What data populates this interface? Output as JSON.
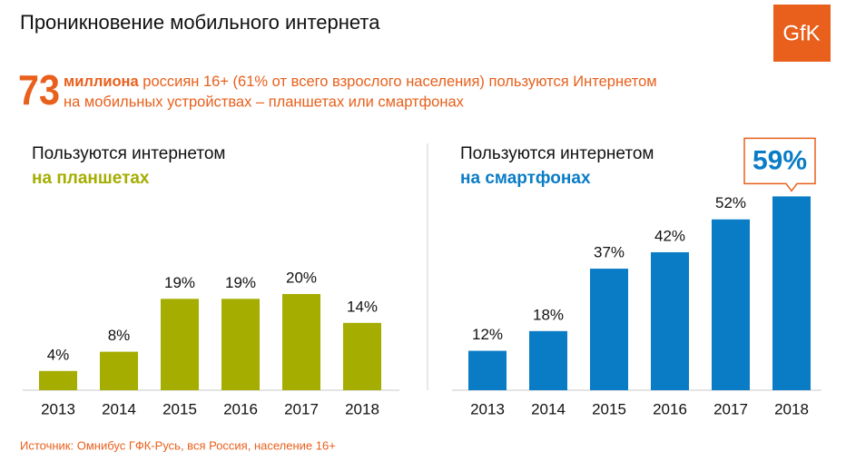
{
  "header": {
    "title": "Проникновение мобильного интернета",
    "logo": "GfK"
  },
  "headline": {
    "number": "73",
    "bold": "миллиона",
    "line1": "россиян 16+ (61% от всего взрослого населения) пользуются Интернетом",
    "line2": "на мобильных устройствах – планшетах или смартфонах"
  },
  "chart_data": [
    {
      "type": "bar",
      "title": "Пользуются интернетом",
      "subtitle": "на планшетах",
      "categories": [
        "2013",
        "2014",
        "2015",
        "2016",
        "2017",
        "2018"
      ],
      "values": [
        4,
        8,
        19,
        19,
        20,
        14
      ],
      "value_labels": [
        "4%",
        "8%",
        "19%",
        "19%",
        "20%",
        "14%"
      ],
      "color": "#a4ad00"
    },
    {
      "type": "bar",
      "title": "Пользуются интернетом",
      "subtitle": "на смартфонах",
      "categories": [
        "2013",
        "2014",
        "2015",
        "2016",
        "2017",
        "2018"
      ],
      "values": [
        12,
        18,
        37,
        42,
        52,
        59
      ],
      "value_labels": [
        "12%",
        "18%",
        "37%",
        "42%",
        "52%",
        "59%"
      ],
      "color": "#0a7cc6",
      "highlight_index": 5
    }
  ],
  "source": "Источник: Омнибус ГФК-Русь, вся Россия, население 16+"
}
